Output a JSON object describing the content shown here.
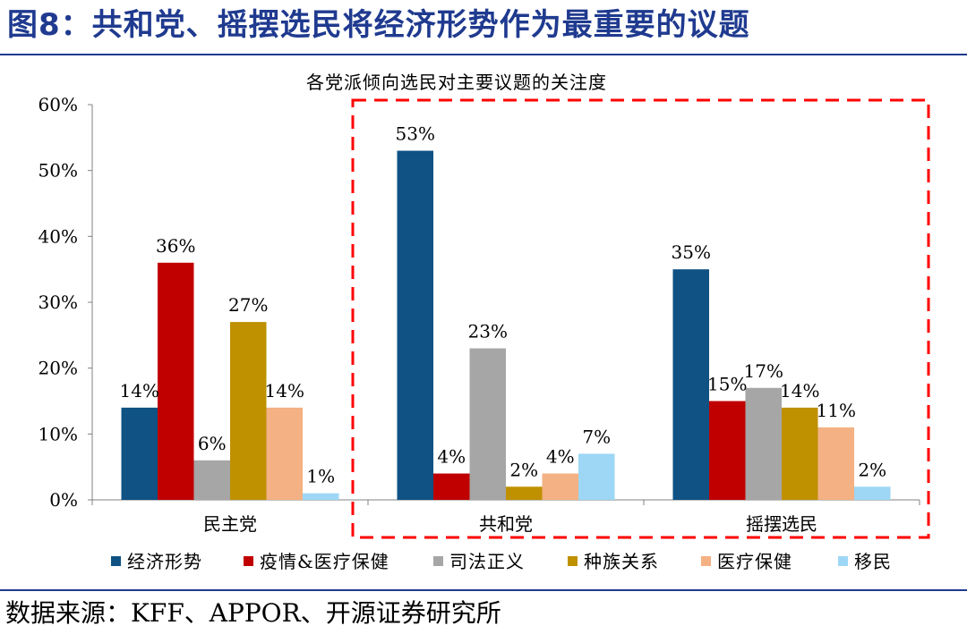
{
  "figure_title": "图8：共和党、摇摆选民将经济形势作为最重要的议题",
  "source": "数据来源：KFF、APPOR、开源证券研究所",
  "chart_data": {
    "type": "bar",
    "title": "各党派倾向选民对主要议题的关注度",
    "categories": [
      "民主党",
      "共和党",
      "摇摆选民"
    ],
    "series": [
      {
        "name": "经济形势",
        "color": "#0f5283",
        "values": [
          14,
          53,
          35
        ],
        "labels": [
          "14%",
          "53%",
          "35%"
        ]
      },
      {
        "name": "疫情&医疗保健",
        "color": "#c00000",
        "values": [
          36,
          4,
          15
        ],
        "labels": [
          "36%",
          "4%",
          "15%"
        ]
      },
      {
        "name": "司法正义",
        "color": "#a6a6a6",
        "values": [
          6,
          23,
          17
        ],
        "labels": [
          "6%",
          "23%",
          "17%"
        ]
      },
      {
        "name": "种族关系",
        "color": "#bf9000",
        "values": [
          27,
          2,
          14
        ],
        "labels": [
          "27%",
          "2%",
          "14%"
        ]
      },
      {
        "name": "医疗保健",
        "color": "#f4b183",
        "values": [
          14,
          4,
          11
        ],
        "labels": [
          "14%",
          "4%",
          "11%"
        ]
      },
      {
        "name": "移民",
        "color": "#9dd7f5",
        "values": [
          1,
          7,
          2
        ],
        "labels": [
          "1%",
          "7%",
          "2%"
        ]
      }
    ],
    "ylim": [
      0,
      60
    ],
    "yticks": [
      0,
      10,
      20,
      30,
      40,
      50,
      60
    ],
    "ytick_labels": [
      "0%",
      "10%",
      "20%",
      "30%",
      "40%",
      "50%",
      "60%"
    ],
    "legend_position": "bottom",
    "highlight_box_color": "#ff0000"
  }
}
